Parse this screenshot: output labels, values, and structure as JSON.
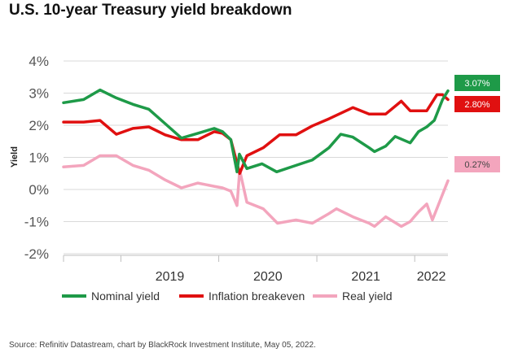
{
  "title": "U.S. 10-year Treasury yield breakdown",
  "source": "Source: Refinitiv Datastream, chart by BlackRock Investment Institute, May 05, 2022.",
  "colors": {
    "nominal": "#1e9a48",
    "breakeven": "#e01010",
    "real": "#f3a5bd",
    "grid": "#d9d9d9",
    "axis": "#bfbfbf",
    "text": "#555555"
  },
  "chart_data": {
    "type": "line",
    "title": "U.S. 10-year Treasury yield breakdown",
    "xlabel": "",
    "ylabel": "Yield",
    "ylim": [
      -2,
      4
    ],
    "xlim": [
      "2018-06-01",
      "2022-05-05"
    ],
    "yticks": [
      "-2%",
      "-1%",
      "0%",
      "1%",
      "2%",
      "3%",
      "4%"
    ],
    "xticks": [
      {
        "label": "2019",
        "date": "2019-01-01"
      },
      {
        "label": "2020",
        "date": "2020-01-01"
      },
      {
        "label": "2021",
        "date": "2021-01-01"
      },
      {
        "label": "2022",
        "date": "2022-01-01"
      }
    ],
    "grid": "horizontal",
    "legend": "bottom",
    "series": [
      {
        "name": "Nominal yield",
        "color": "#1e9a48",
        "end_label": "3.07%",
        "points": [
          [
            "2018-06-01",
            2.7
          ],
          [
            "2018-08-15",
            2.8
          ],
          [
            "2018-10-15",
            3.1
          ],
          [
            "2018-12-15",
            2.85
          ],
          [
            "2019-02-15",
            2.65
          ],
          [
            "2019-04-15",
            2.5
          ],
          [
            "2019-06-15",
            2.05
          ],
          [
            "2019-08-15",
            1.6
          ],
          [
            "2019-10-15",
            1.75
          ],
          [
            "2019-12-15",
            1.9
          ],
          [
            "2020-01-15",
            1.8
          ],
          [
            "2020-02-15",
            1.55
          ],
          [
            "2020-03-09",
            0.55
          ],
          [
            "2020-03-18",
            1.1
          ],
          [
            "2020-04-15",
            0.65
          ],
          [
            "2020-06-10",
            0.8
          ],
          [
            "2020-08-04",
            0.55
          ],
          [
            "2020-10-15",
            0.75
          ],
          [
            "2020-12-15",
            0.92
          ],
          [
            "2021-02-15",
            1.3
          ],
          [
            "2021-03-31",
            1.72
          ],
          [
            "2021-05-15",
            1.63
          ],
          [
            "2021-07-15",
            1.3
          ],
          [
            "2021-08-04",
            1.18
          ],
          [
            "2021-09-15",
            1.35
          ],
          [
            "2021-10-20",
            1.65
          ],
          [
            "2021-12-15",
            1.45
          ],
          [
            "2022-01-15",
            1.8
          ],
          [
            "2022-02-15",
            1.95
          ],
          [
            "2022-03-15",
            2.15
          ],
          [
            "2022-04-15",
            2.8
          ],
          [
            "2022-05-05",
            3.07
          ]
        ]
      },
      {
        "name": "Inflation breakeven",
        "color": "#e01010",
        "end_label": "2.80%",
        "points": [
          [
            "2018-06-01",
            2.1
          ],
          [
            "2018-08-15",
            2.1
          ],
          [
            "2018-10-15",
            2.15
          ],
          [
            "2018-12-15",
            1.72
          ],
          [
            "2019-02-15",
            1.9
          ],
          [
            "2019-04-15",
            1.95
          ],
          [
            "2019-06-15",
            1.7
          ],
          [
            "2019-08-15",
            1.55
          ],
          [
            "2019-10-15",
            1.55
          ],
          [
            "2019-12-15",
            1.8
          ],
          [
            "2020-01-15",
            1.75
          ],
          [
            "2020-02-15",
            1.55
          ],
          [
            "2020-03-19",
            0.5
          ],
          [
            "2020-04-15",
            1.05
          ],
          [
            "2020-06-15",
            1.3
          ],
          [
            "2020-08-15",
            1.7
          ],
          [
            "2020-10-15",
            1.7
          ],
          [
            "2020-12-15",
            1.98
          ],
          [
            "2021-02-15",
            2.2
          ],
          [
            "2021-05-15",
            2.55
          ],
          [
            "2021-07-15",
            2.35
          ],
          [
            "2021-09-15",
            2.35
          ],
          [
            "2021-11-12",
            2.75
          ],
          [
            "2021-12-15",
            2.45
          ],
          [
            "2022-01-15",
            2.45
          ],
          [
            "2022-02-15",
            2.45
          ],
          [
            "2022-03-25",
            2.95
          ],
          [
            "2022-04-15",
            2.95
          ],
          [
            "2022-05-05",
            2.8
          ]
        ]
      },
      {
        "name": "Real yield",
        "color": "#f3a5bd",
        "end_label": "0.27%",
        "points": [
          [
            "2018-06-01",
            0.7
          ],
          [
            "2018-08-15",
            0.75
          ],
          [
            "2018-10-15",
            1.05
          ],
          [
            "2018-12-15",
            1.05
          ],
          [
            "2019-02-15",
            0.75
          ],
          [
            "2019-04-15",
            0.6
          ],
          [
            "2019-06-15",
            0.3
          ],
          [
            "2019-08-15",
            0.05
          ],
          [
            "2019-10-15",
            0.2
          ],
          [
            "2019-12-15",
            0.1
          ],
          [
            "2020-01-15",
            0.05
          ],
          [
            "2020-02-15",
            -0.05
          ],
          [
            "2020-03-09",
            -0.5
          ],
          [
            "2020-03-19",
            0.6
          ],
          [
            "2020-04-15",
            -0.4
          ],
          [
            "2020-06-15",
            -0.6
          ],
          [
            "2020-08-07",
            -1.05
          ],
          [
            "2020-10-15",
            -0.95
          ],
          [
            "2020-12-15",
            -1.05
          ],
          [
            "2021-02-15",
            -0.75
          ],
          [
            "2021-03-15",
            -0.6
          ],
          [
            "2021-05-15",
            -0.85
          ],
          [
            "2021-07-15",
            -1.05
          ],
          [
            "2021-08-04",
            -1.15
          ],
          [
            "2021-09-15",
            -0.85
          ],
          [
            "2021-11-12",
            -1.15
          ],
          [
            "2021-12-15",
            -1.0
          ],
          [
            "2022-01-15",
            -0.7
          ],
          [
            "2022-02-15",
            -0.45
          ],
          [
            "2022-03-08",
            -0.95
          ],
          [
            "2022-04-15",
            -0.15
          ],
          [
            "2022-05-05",
            0.27
          ]
        ]
      }
    ]
  }
}
